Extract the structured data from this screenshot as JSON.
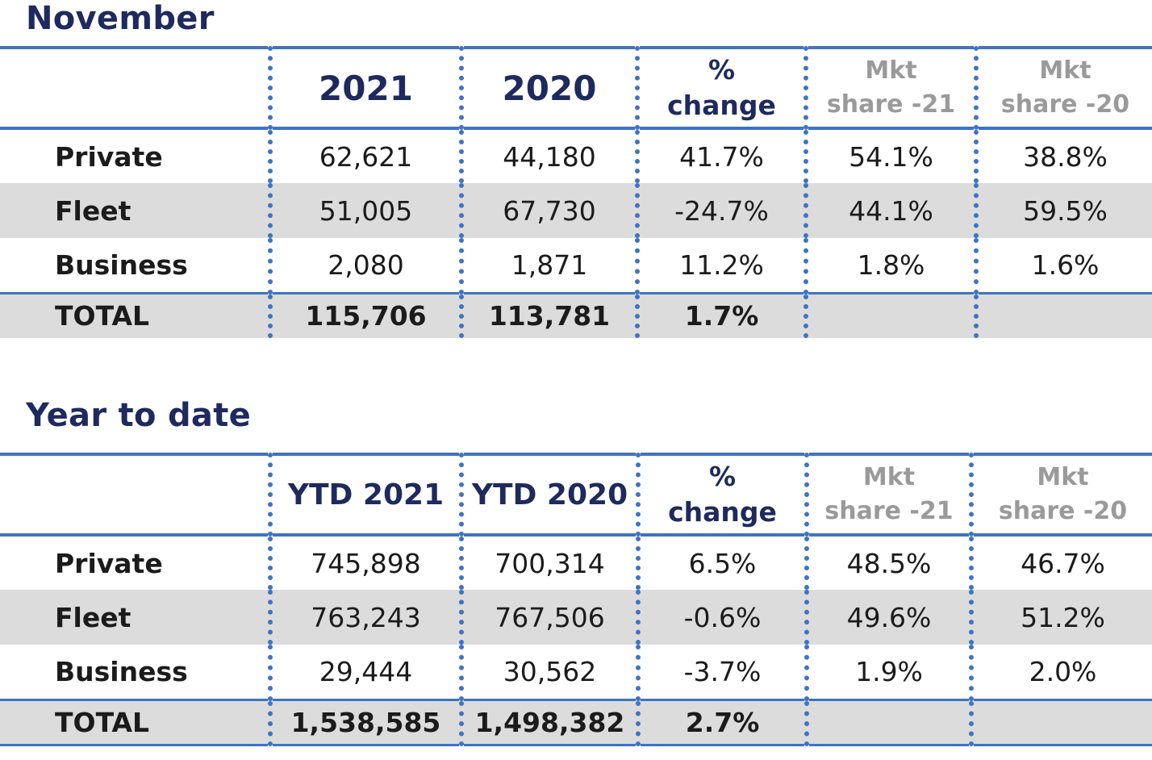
{
  "november": {
    "title": "November",
    "headers": {
      "col1": "2021",
      "col2": "2020",
      "col3_line1": "%",
      "col3_line2": "change",
      "col4_line1": "Mkt",
      "col4_line2": "share -21",
      "col5_line1": "Mkt",
      "col5_line2": "share -20"
    },
    "rows": [
      {
        "label": "Private",
        "v2021": "62,621",
        "v2020": "44,180",
        "change": "41.7%",
        "share21": "54.1%",
        "share20": "38.8%"
      },
      {
        "label": "Fleet",
        "v2021": "51,005",
        "v2020": "67,730",
        "change": "-24.7%",
        "share21": "44.1%",
        "share20": "59.5%"
      },
      {
        "label": "Business",
        "v2021": "2,080",
        "v2020": "1,871",
        "change": "11.2%",
        "share21": "1.8%",
        "share20": "1.6%"
      },
      {
        "label": "TOTAL",
        "v2021": "115,706",
        "v2020": "113,781",
        "change": "1.7%",
        "share21": "",
        "share20": ""
      }
    ]
  },
  "ytd": {
    "title": "Year to date",
    "headers": {
      "col1": "YTD 2021",
      "col2": "YTD 2020",
      "col3_line1": "%",
      "col3_line2": "change",
      "col4_line1": "Mkt",
      "col4_line2": "share -21",
      "col5_line1": "Mkt",
      "col5_line2": "share -20"
    },
    "rows": [
      {
        "label": "Private",
        "v2021": "745,898",
        "v2020": "700,314",
        "change": "6.5%",
        "share21": "48.5%",
        "share20": "46.7%"
      },
      {
        "label": "Fleet",
        "v2021": "763,243",
        "v2020": "767,506",
        "change": "-0.6%",
        "share21": "49.6%",
        "share20": "51.2%"
      },
      {
        "label": "Business",
        "v2021": "29,444",
        "v2020": "30,562",
        "change": "-3.7%",
        "share21": "1.9%",
        "share20": "2.0%"
      },
      {
        "label": "TOTAL",
        "v2021": "1,538,585",
        "v2020": "1,498,382",
        "change": "2.7%",
        "share21": "",
        "share20": ""
      }
    ]
  },
  "colors": {
    "title": "#1e2a5e",
    "rule": "#3f73c4",
    "shade": "#dcdcdc",
    "share_header": "#9a9a9a"
  }
}
